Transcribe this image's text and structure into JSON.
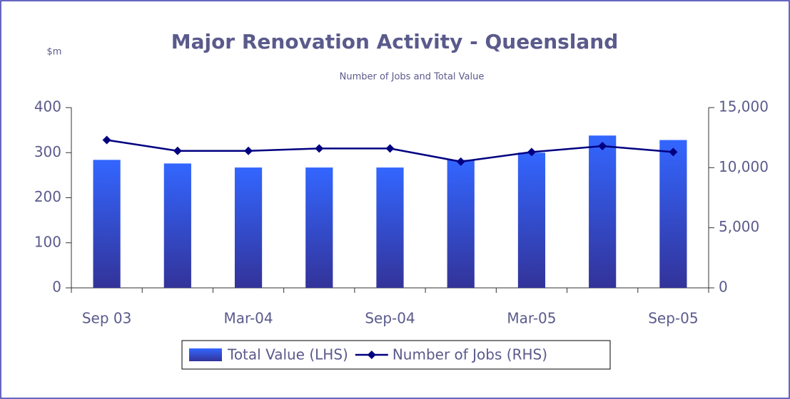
{
  "chart_data": {
    "type": "bar",
    "title": "Major Renovation Activity - Queensland",
    "subtitle": "Number of Jobs and Total Value",
    "ylabel": "$m",
    "categories": [
      "Sep 03",
      null,
      "Mar-04",
      null,
      "Sep-04",
      null,
      "Mar-05",
      null,
      "Sep-05"
    ],
    "series": [
      {
        "name": "Total Value (LHS)",
        "type": "bar",
        "color": "#3366ff",
        "values": [
          284,
          276,
          267,
          267,
          267,
          284,
          300,
          338,
          328
        ]
      },
      {
        "name": "Number of Jobs (RHS)",
        "type": "line",
        "axis": "y2",
        "color": "#000080",
        "values": [
          12300,
          11400,
          11400,
          11600,
          11600,
          10500,
          11300,
          11800,
          11300
        ]
      }
    ],
    "ylim": [
      0,
      400
    ],
    "yticks": [
      0,
      100,
      200,
      300,
      400
    ],
    "y2lim": [
      0,
      15000
    ],
    "y2ticks": [
      0,
      {
        "value": 5000,
        "label": "5,000"
      },
      {
        "value": 10000,
        "label": "10,000"
      },
      {
        "value": 15000,
        "label": "15,000"
      }
    ],
    "legend": "bottom"
  }
}
